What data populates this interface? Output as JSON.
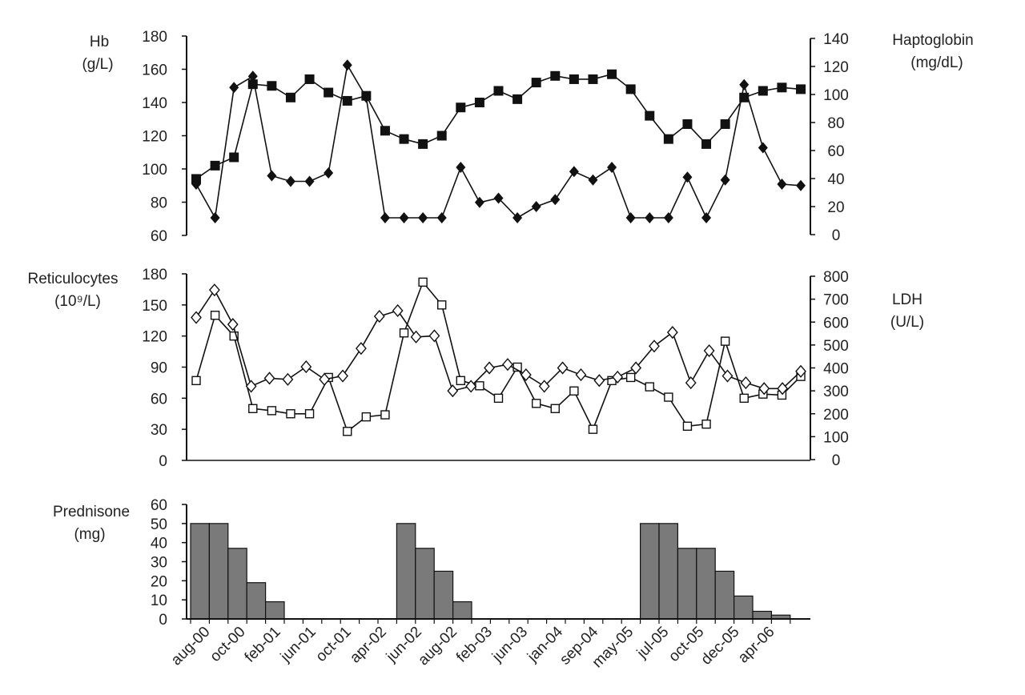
{
  "chart_data": [
    {
      "type": "line",
      "panel": "top",
      "left_axis": {
        "label_line1": "Hb",
        "label_line2": "(g/L)",
        "ylim": [
          60,
          180
        ],
        "ticks": [
          "60",
          "80",
          "100",
          "120",
          "140",
          "160",
          "180"
        ]
      },
      "right_axis": {
        "label_line1": "Haptoglobin",
        "label_line2": "(mg/dL)",
        "ylim": [
          0,
          140
        ],
        "ticks": [
          "0",
          "20",
          "40",
          "60",
          "80",
          "100",
          "120",
          "140"
        ]
      },
      "series": [
        {
          "name": "Hb",
          "marker": "filled-square",
          "axis": "left",
          "values": [
            94,
            102,
            107,
            151,
            150,
            143,
            154,
            146,
            141,
            144,
            123,
            118,
            115,
            120,
            137,
            140,
            147,
            142,
            152,
            156,
            154,
            154,
            157,
            148,
            132,
            118,
            127,
            115,
            127,
            143,
            147,
            149,
            148
          ]
        },
        {
          "name": "Haptoglobin",
          "marker": "filled-diamond",
          "axis": "right",
          "values": [
            36,
            12,
            105,
            113,
            42,
            38,
            38,
            44,
            121,
            98,
            12,
            12,
            12,
            12,
            48,
            23,
            26,
            12,
            20,
            25,
            45,
            39,
            48,
            12,
            12,
            12,
            41,
            12,
            39,
            107,
            62,
            36,
            35
          ]
        }
      ]
    },
    {
      "type": "line",
      "panel": "middle",
      "left_axis": {
        "label_line1": "Reticulocytes",
        "label_line2": "(10⁹/L)",
        "ylim": [
          0,
          180
        ],
        "ticks": [
          "0",
          "30",
          "60",
          "90",
          "120",
          "150",
          "180"
        ]
      },
      "right_axis": {
        "label_line1": "LDH",
        "label_line2": "(U/L)",
        "ylim": [
          0,
          800
        ],
        "ticks": [
          "0",
          "100",
          "200",
          "300",
          "400",
          "500",
          "600",
          "700",
          "800"
        ]
      },
      "series": [
        {
          "name": "Reticulocytes",
          "marker": "open-square",
          "axis": "left",
          "values": [
            77,
            140,
            120,
            50,
            48,
            45,
            45,
            80,
            28,
            42,
            44,
            123,
            172,
            150,
            77,
            72,
            60,
            90,
            55,
            50,
            67,
            30,
            77,
            80,
            71,
            61,
            33,
            35,
            115,
            60,
            64,
            63,
            81
          ]
        },
        {
          "name": "LDH",
          "marker": "open-diamond",
          "axis": "right",
          "values": [
            620,
            740,
            590,
            320,
            355,
            350,
            405,
            350,
            365,
            485,
            625,
            650,
            535,
            540,
            300,
            320,
            400,
            415,
            370,
            320,
            400,
            370,
            345,
            360,
            400,
            495,
            555,
            335,
            475,
            365,
            335,
            310,
            310,
            385
          ]
        }
      ]
    },
    {
      "type": "bar",
      "panel": "bottom",
      "left_axis": {
        "label_line1": "Prednisone",
        "label_line2": "(mg)",
        "ylim": [
          0,
          60
        ],
        "ticks": [
          "0",
          "10",
          "20",
          "30",
          "40",
          "50",
          "60"
        ]
      },
      "values": [
        50,
        50,
        37,
        19,
        9,
        0,
        0,
        0,
        0,
        0,
        0,
        50,
        37,
        25,
        9,
        0,
        0,
        0,
        0,
        0,
        0,
        0,
        0,
        0,
        50,
        50,
        37,
        37,
        25,
        12,
        4,
        2
      ]
    }
  ],
  "x_axis": {
    "tick_labels": [
      "aug-00",
      "oct-00",
      "feb-01",
      "jun-01",
      "oct-01",
      "apr-02",
      "jun-02",
      "aug-02",
      "feb-03",
      "jun-03",
      "jan-04",
      "sep-04",
      "may-05",
      "jul-05",
      "oct-05",
      "dec-05",
      "apr-06"
    ]
  }
}
